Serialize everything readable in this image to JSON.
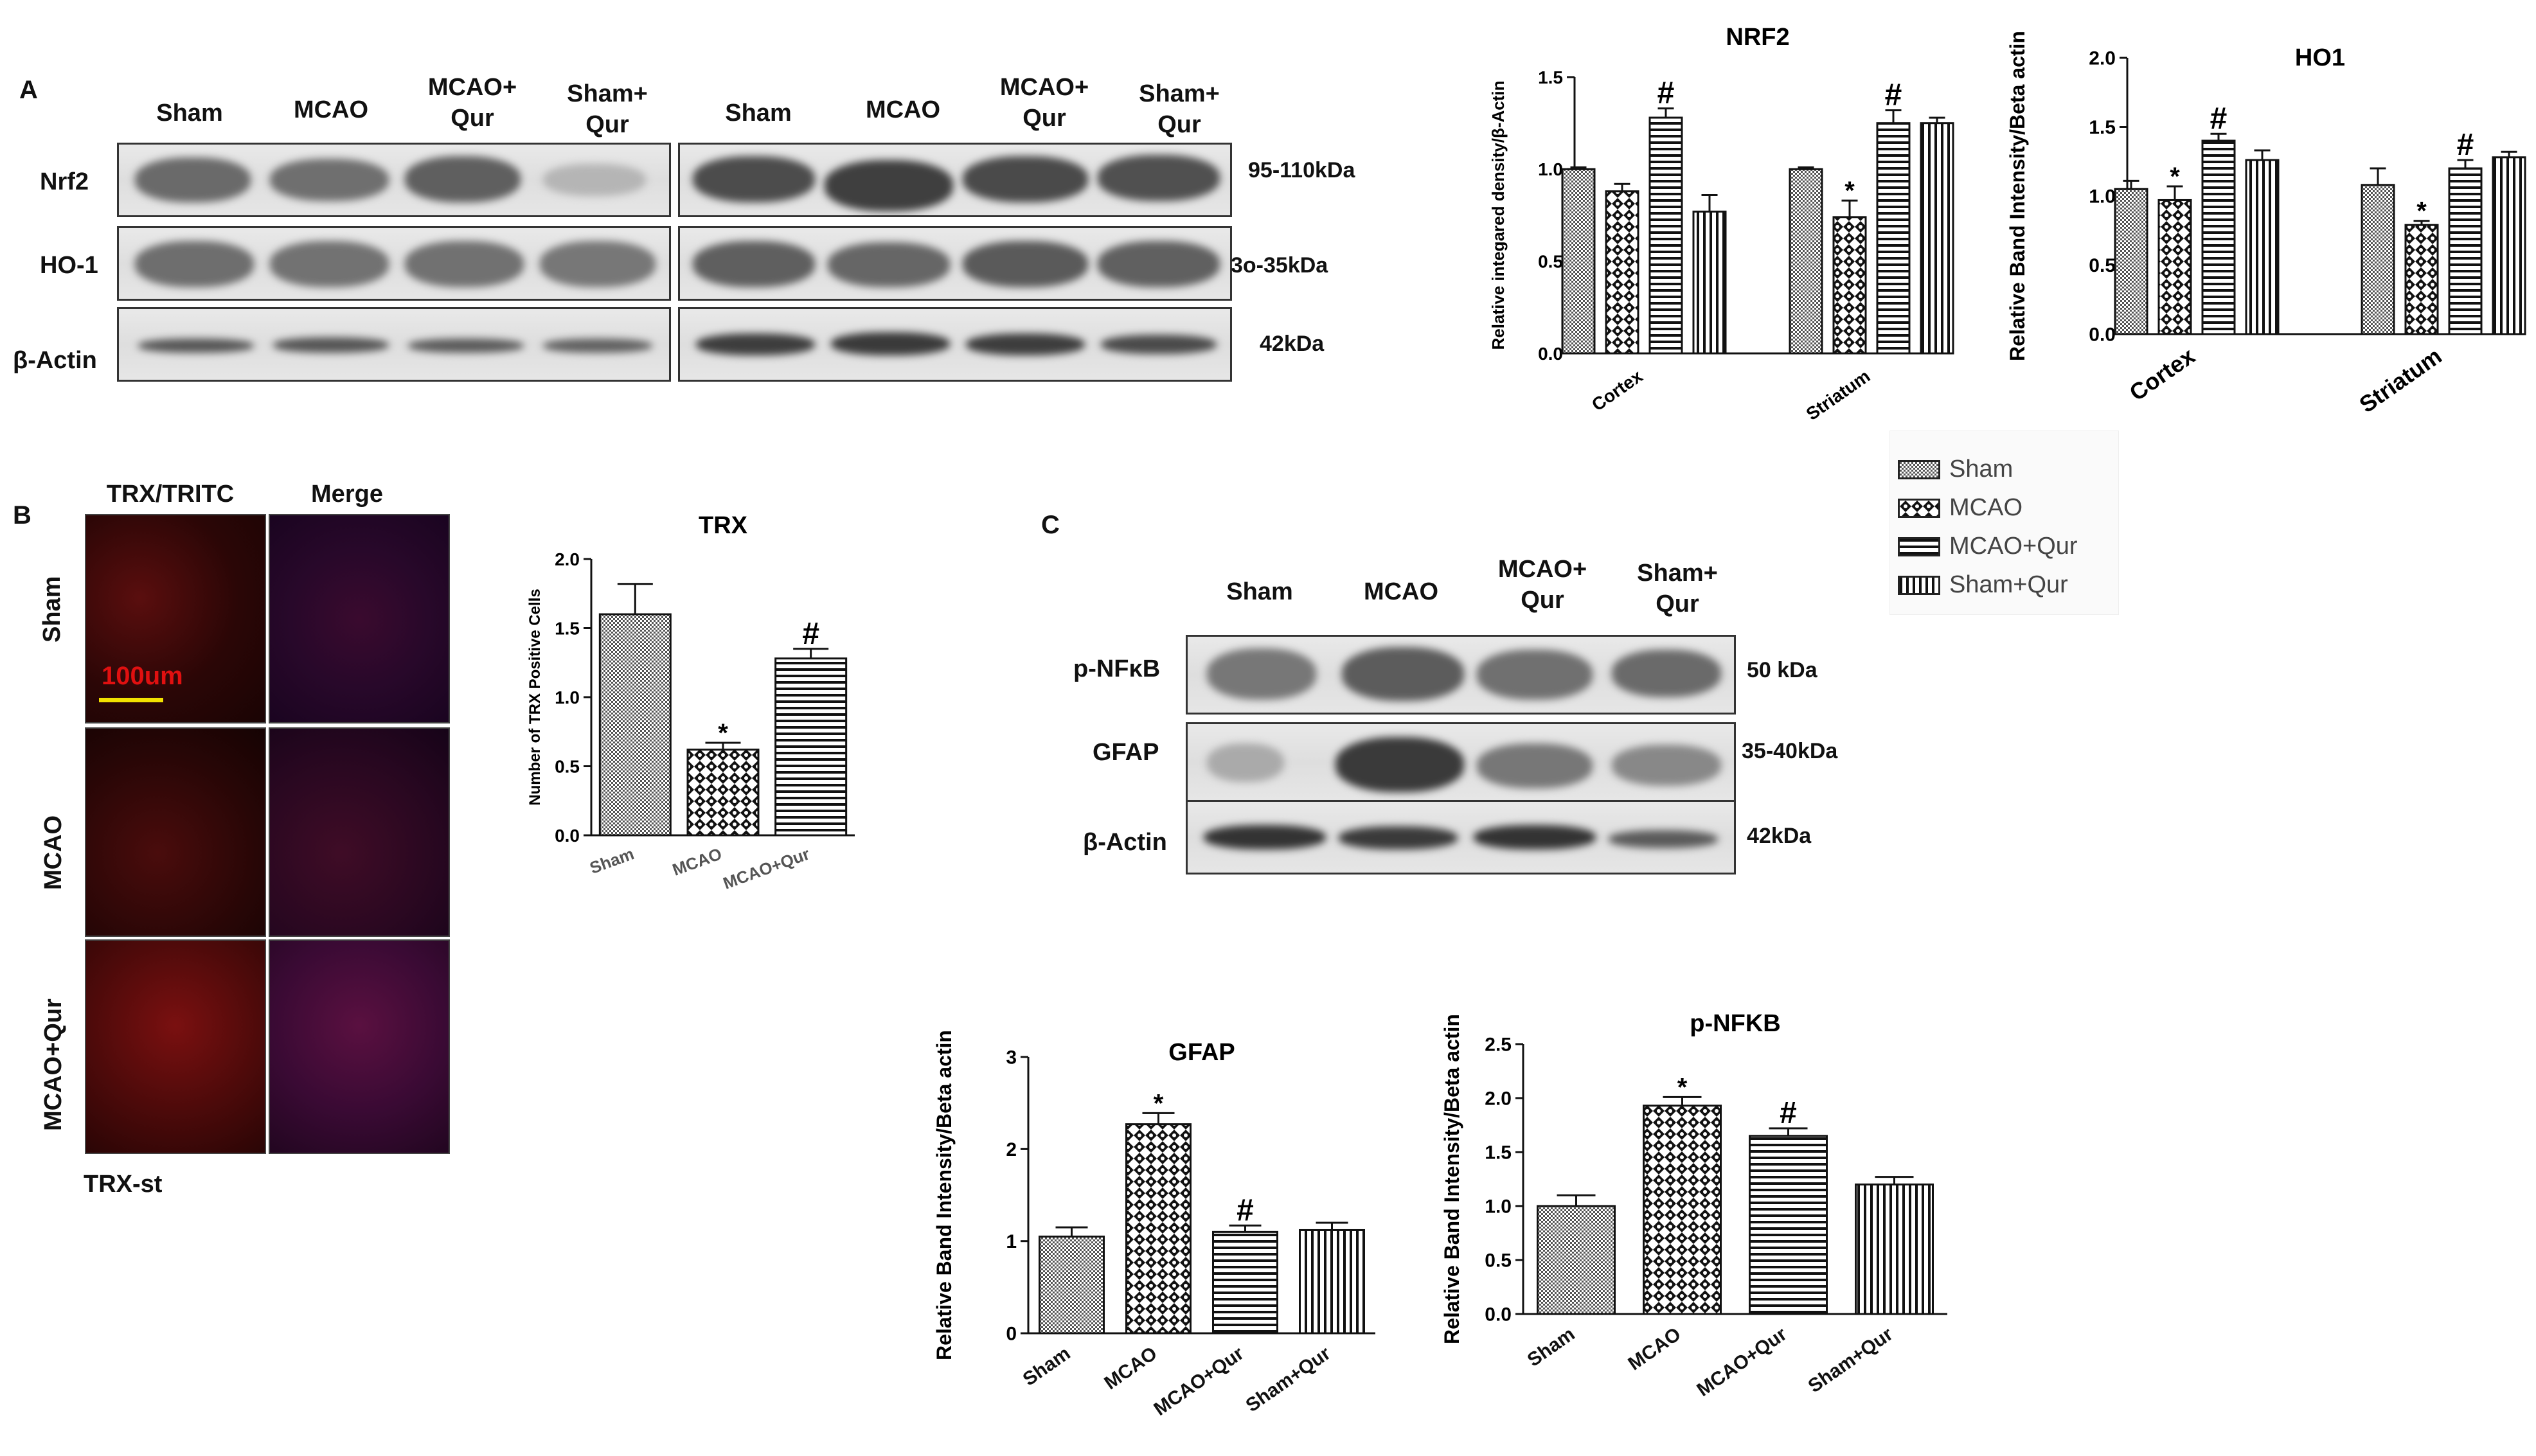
{
  "panel_labels": {
    "a": "A",
    "b": "B",
    "c": "C"
  },
  "panel_a": {
    "lanes_left": [
      "Sham",
      "MCAO",
      "MCAO+\nQur",
      "Sham+\nQur"
    ],
    "lanes_right": [
      "Sham",
      "MCAO",
      "MCAO+\nQur",
      "Sham+\nQur"
    ],
    "rows": [
      "Nrf2",
      "HO-1",
      "β-Actin"
    ],
    "sizes": [
      "95-110kDa",
      "3o-35kDa",
      "42kDa"
    ]
  },
  "panel_b": {
    "col_labels": [
      "TRX/TRITC",
      "Merge"
    ],
    "row_labels": [
      "Sham",
      "MCAO",
      "MCAO+Qur"
    ],
    "scale_bar": "100um",
    "caption": "TRX-st"
  },
  "panel_c": {
    "lanes": [
      "Sham",
      "MCAO",
      "MCAO+\nQur",
      "Sham+\nQur"
    ],
    "rows": [
      "p-NFκB",
      "GFAP",
      "β-Actin"
    ],
    "sizes": [
      "50 kDa",
      "35-40kDa",
      "42kDa"
    ]
  },
  "legend": {
    "items": [
      {
        "label": "Sham",
        "pattern": "dense-hatch"
      },
      {
        "label": "MCAO",
        "pattern": "checker"
      },
      {
        "label": "MCAO+Qur",
        "pattern": "horizontal"
      },
      {
        "label": "Sham+Qur",
        "pattern": "vertical"
      }
    ]
  },
  "chart_data": [
    {
      "id": "nrf2",
      "type": "bar",
      "title": "NRF2",
      "ylabel": "Relative integared density/β-Actin",
      "groups": [
        "Cortex",
        "Striatum"
      ],
      "series": [
        {
          "name": "Sham",
          "values": [
            1.0,
            1.0
          ],
          "err": [
            0.01,
            0.01
          ],
          "marks": [
            "",
            ""
          ]
        },
        {
          "name": "MCAO",
          "values": [
            0.88,
            0.74
          ],
          "err": [
            0.04,
            0.09
          ],
          "marks": [
            "",
            "*"
          ]
        },
        {
          "name": "MCAO+Qur",
          "values": [
            1.28,
            1.25
          ],
          "err": [
            0.05,
            0.07
          ],
          "marks": [
            "#",
            "#"
          ]
        },
        {
          "name": "Sham+Qur",
          "values": [
            0.77,
            1.25
          ],
          "err": [
            0.09,
            0.03
          ],
          "marks": [
            "",
            ""
          ]
        }
      ],
      "ylim": [
        0,
        1.5
      ],
      "yticks": [
        "0.0",
        "0.5",
        "1.0",
        "1.5"
      ]
    },
    {
      "id": "ho1",
      "type": "bar",
      "title": "HO1",
      "ylabel": "Relative Band Intensity/Beta actin",
      "groups": [
        "Cortex",
        "Striatum"
      ],
      "series": [
        {
          "name": "Sham",
          "values": [
            1.05,
            1.08
          ],
          "err": [
            0.06,
            0.12
          ],
          "marks": [
            "",
            ""
          ]
        },
        {
          "name": "MCAO",
          "values": [
            0.97,
            0.79
          ],
          "err": [
            0.1,
            0.03
          ],
          "marks": [
            "*",
            "*"
          ]
        },
        {
          "name": "MCAO+Qur",
          "values": [
            1.4,
            1.2
          ],
          "err": [
            0.05,
            0.06
          ],
          "marks": [
            "#",
            "#"
          ]
        },
        {
          "name": "Sham+Qur",
          "values": [
            1.26,
            1.28
          ],
          "err": [
            0.07,
            0.04
          ],
          "marks": [
            "",
            ""
          ]
        }
      ],
      "ylim": [
        0,
        2.0
      ],
      "yticks": [
        "0.0",
        "0.5",
        "1.0",
        "1.5",
        "2.0"
      ]
    },
    {
      "id": "trx",
      "type": "bar",
      "title": "TRX",
      "ylabel": "Number of TRX Positive Cells",
      "categories": [
        "Sham",
        "MCAO",
        "MCAO+Qur"
      ],
      "values": [
        1.6,
        0.62,
        1.28
      ],
      "err": [
        0.22,
        0.05,
        0.07
      ],
      "marks": [
        "",
        "*",
        "#"
      ],
      "ylim": [
        0,
        2.0
      ],
      "yticks": [
        "0.0",
        "0.5",
        "1.0",
        "1.5",
        "2.0"
      ]
    },
    {
      "id": "gfap",
      "type": "bar",
      "title": "GFAP",
      "ylabel": "Relative Band Intensity/Beta actin",
      "categories": [
        "Sham",
        "MCAO",
        "MCAO+Qur",
        "Sham+Qur"
      ],
      "values": [
        1.05,
        2.27,
        1.1,
        1.12
      ],
      "err": [
        0.1,
        0.12,
        0.07,
        0.08
      ],
      "marks": [
        "",
        "*",
        "#",
        ""
      ],
      "ylim": [
        0,
        3
      ],
      "yticks": [
        "0",
        "1",
        "2",
        "3"
      ]
    },
    {
      "id": "pnfkb",
      "type": "bar",
      "title": "p-NFKB",
      "ylabel": "Relative Band Intensity/Beta actin",
      "categories": [
        "Sham",
        "MCAO",
        "MCAO+Qur",
        "Sham+Qur"
      ],
      "values": [
        1.0,
        1.93,
        1.65,
        1.2
      ],
      "err": [
        0.1,
        0.08,
        0.07,
        0.07
      ],
      "marks": [
        "",
        "*",
        "#",
        ""
      ],
      "ylim": [
        0,
        2.5
      ],
      "yticks": [
        "0.0",
        "0.5",
        "1.0",
        "1.5",
        "2.0",
        "2.5"
      ]
    }
  ]
}
